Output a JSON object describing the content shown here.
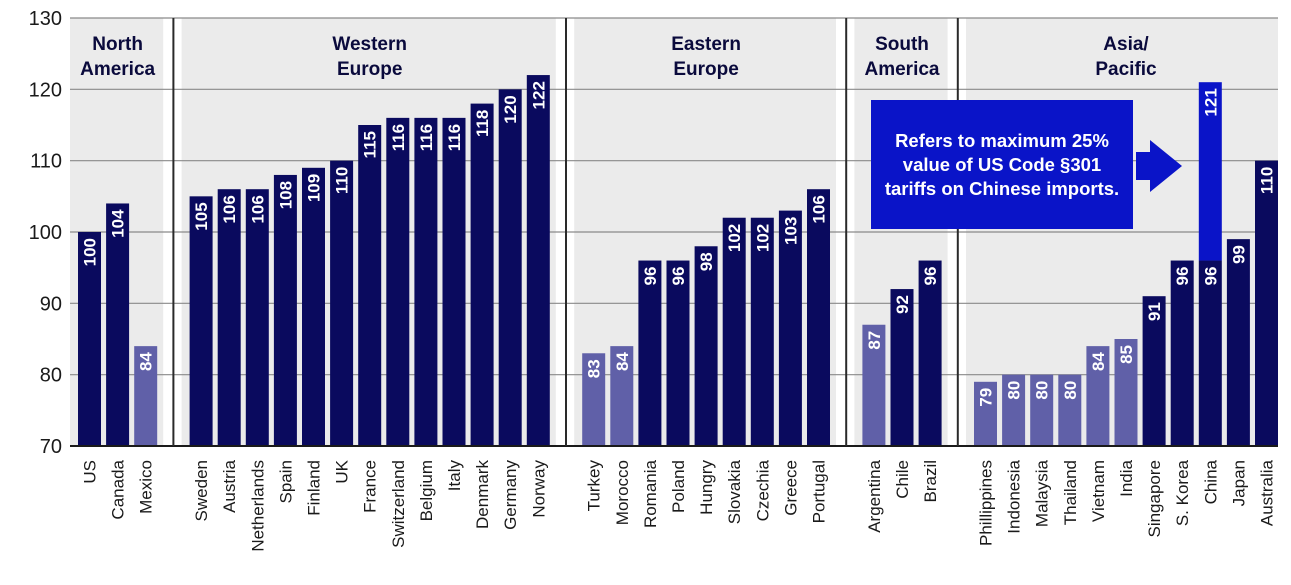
{
  "chart_data": {
    "type": "bar",
    "ylim": [
      70,
      130
    ],
    "yticks": [
      70,
      80,
      90,
      100,
      110,
      120,
      130
    ],
    "grid": true,
    "colors": {
      "dark": "#0a0a5e",
      "light": "#6060a8",
      "highlight": "#0a14c8",
      "panel": "#ebebeb"
    },
    "groups": [
      {
        "name": "North\nAmerica",
        "categories": [
          "US",
          "Canada",
          "Mexico"
        ],
        "values": [
          100,
          104,
          84
        ],
        "shade": [
          "dark",
          "dark",
          "light"
        ]
      },
      {
        "name": "Western\nEurope",
        "categories": [
          "Sweden",
          "Austria",
          "Netherlands",
          "Spain",
          "Finland",
          "UK",
          "France",
          "Switzerland",
          "Belgium",
          "Italy",
          "Denmark",
          "Germany",
          "Norway"
        ],
        "values": [
          105,
          106,
          106,
          108,
          109,
          110,
          115,
          116,
          116,
          116,
          118,
          120,
          122
        ],
        "shade": [
          "dark",
          "dark",
          "dark",
          "dark",
          "dark",
          "dark",
          "dark",
          "dark",
          "dark",
          "dark",
          "dark",
          "dark",
          "dark"
        ]
      },
      {
        "name": "Eastern\nEurope",
        "categories": [
          "Turkey",
          "Morocco",
          "Romania",
          "Poland",
          "Hungry",
          "Slovakia",
          "Czechia",
          "Greece",
          "Portugal"
        ],
        "values": [
          83,
          84,
          96,
          96,
          98,
          102,
          102,
          103,
          106
        ],
        "shade": [
          "light",
          "light",
          "dark",
          "dark",
          "dark",
          "dark",
          "dark",
          "dark",
          "dark"
        ]
      },
      {
        "name": "South\nAmerica",
        "categories": [
          "Argentina",
          "Chile",
          "Brazil"
        ],
        "values": [
          87,
          92,
          96
        ],
        "shade": [
          "light",
          "dark",
          "dark"
        ]
      },
      {
        "name": "Asia/\nPacific",
        "categories": [
          "Phillippines",
          "Indonesia",
          "Malaysia",
          "Thailand",
          "Vietnam",
          "India",
          "Singapore",
          "S. Korea",
          "China",
          "Japan",
          "Australia"
        ],
        "values": [
          79,
          80,
          80,
          80,
          84,
          85,
          91,
          96,
          96,
          99,
          110
        ],
        "shade": [
          "light",
          "light",
          "light",
          "light",
          "light",
          "light",
          "dark",
          "dark",
          "dark",
          "dark",
          "dark"
        ]
      }
    ],
    "china_tariff": {
      "category": "China",
      "value": 121,
      "label": "121"
    }
  },
  "annotation": {
    "text": "Refers to maximum 25% value of US Code §301 tariffs on Chinese imports."
  }
}
